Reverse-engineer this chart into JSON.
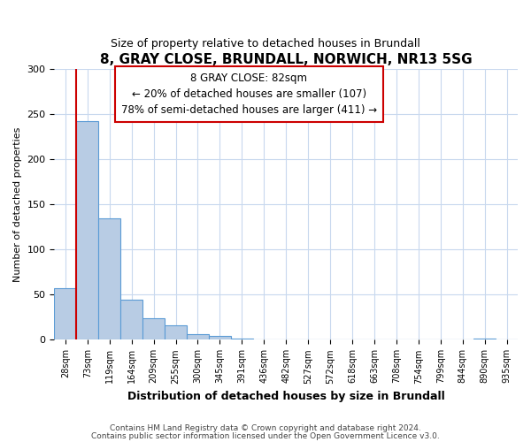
{
  "title": "8, GRAY CLOSE, BRUNDALL, NORWICH, NR13 5SG",
  "subtitle": "Size of property relative to detached houses in Brundall",
  "xlabel": "Distribution of detached houses by size in Brundall",
  "ylabel": "Number of detached properties",
  "bin_labels": [
    "28sqm",
    "73sqm",
    "119sqm",
    "164sqm",
    "209sqm",
    "255sqm",
    "300sqm",
    "345sqm",
    "391sqm",
    "436sqm",
    "482sqm",
    "527sqm",
    "572sqm",
    "618sqm",
    "663sqm",
    "708sqm",
    "754sqm",
    "799sqm",
    "844sqm",
    "890sqm",
    "935sqm"
  ],
  "bar_heights": [
    57,
    242,
    134,
    44,
    24,
    16,
    6,
    4,
    1,
    0,
    0,
    0,
    0,
    0,
    0,
    0,
    0,
    0,
    0,
    1,
    0
  ],
  "bar_color": "#b8cce4",
  "bar_edge_color": "#5b9bd5",
  "vline_color": "#cc0000",
  "annotation_title": "8 GRAY CLOSE: 82sqm",
  "annotation_line1": "← 20% of detached houses are smaller (107)",
  "annotation_line2": "78% of semi-detached houses are larger (411) →",
  "annotation_box_color": "#ffffff",
  "annotation_border_color": "#cc0000",
  "ylim": [
    0,
    300
  ],
  "yticks": [
    0,
    50,
    100,
    150,
    200,
    250,
    300
  ],
  "footer1": "Contains HM Land Registry data © Crown copyright and database right 2024.",
  "footer2": "Contains public sector information licensed under the Open Government Licence v3.0.",
  "bg_color": "#ffffff",
  "grid_color": "#c8d8ee"
}
